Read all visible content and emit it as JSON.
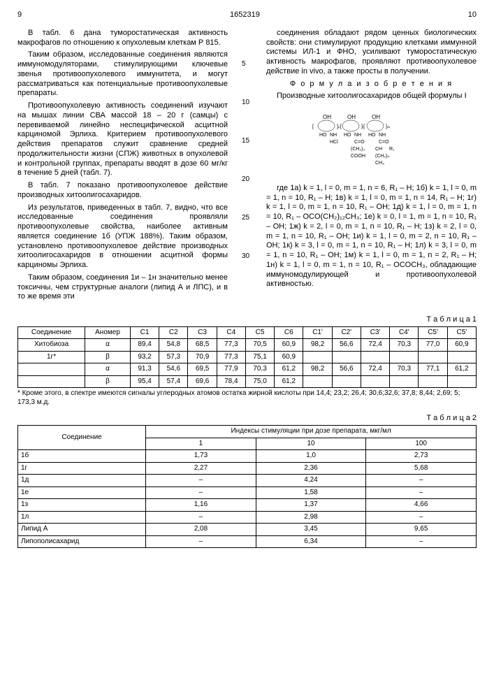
{
  "header": {
    "page_left": "9",
    "doc_number": "1652319",
    "page_right": "10"
  },
  "line_markers": [
    "5",
    "10",
    "15",
    "20",
    "25",
    "30"
  ],
  "left_column": {
    "p1": "В табл. 6 дана туморостатическая активность макрофагов по отношению к опухолевым клеткам Р 815.",
    "p2": "Таким образом, исследованные соединения являются иммуномодуляторами, стимулирующими ключевые звенья противоопухолевого иммунитета, и могут рассматриваться как потенциальные противоопухолевые препараты.",
    "p3": "Противоопухолевую активность соединений изучают на мышах линии СВА массой 18 – 20 г (самцы) с перевиваемой линейно неспецифической асцитной карциномой Эрлиха. Критерием противоопухолевого действия препаратов служит сравнение средней продолжительности жизни (СПЖ) животных в опухолевой и контрольной группах, препараты вводят в дозе 60 мг/кг в течение 5 дней (табл. 7).",
    "p4": "В табл. 7 показано противоопухолевое действие производных хитоолигосахаридов.",
    "p5": "Из результатов, приведенных в табл. 7, видно, что все исследованные соединения проявляли противоопухолевые свойства, наиболее активным является соединение 1б (УПЖ 188%). Таким образом, установлено противоопухолевое действие производных хитоолигосахаридов в отношении асцитной формы карциномы Эрлиха.",
    "p6": "Таким образом, соединения 1и – 1н значительно менее токсичны, чем структурные аналоги (липид А и ЛПС), и в то же время эти"
  },
  "right_column": {
    "p1": "соединения обладают рядом ценных биологических свойств: они стимулируют продукцию клетками иммунной системы ИЛ-1 и ФНО, усиливают туморостатическую активность макрофагов, проявляют противоопухолевое действие in vivo, а также просты в получении.",
    "formula_heading": "Ф о р м у л а  и з о б р е т е н и я",
    "p2": "Производные хитоолигосахаридов общей формулы I",
    "structure": "[химическая структура]",
    "p3": "где 1а) k = 1, l = 0, m = 1, n = 6, R₁ – H; 1б) k = 1, l = 0, m = 1, n = 10, R₁ – H; 1в) k = 1, l = 0, m = 1, n = 14, R₁ – H; 1г) k = 1, l = 0, m = 1, n = 10, R₁ – OH; 1д) k = 1, l = 0, m = 1, n = 10, R₁ – OCO(CH₂)₁₂CH₃; 1е) k = 0, l = 1, m = 1, n = 10, R₁ – OH; 1ж) k = 2, l = 0, m = 1, n = 10, R₁ – H; 1з) k = 2, l = 0, m = 1, n = 10, R₁ – OH; 1и) k = 1, l = 0, m = 2, n = 10, R₁ – OH; 1к) k = 3, l = 0, m = 1, n = 10, R₁ – H; 1л) k = 3, l = 0, m = 1, n = 10, R₁ – OH; 1м) k = 1, l = 0, m = 1, n = 2, R₁ – H; 1н) k = 1, l = 0, m = 1, n = 10, R₁ – OCOCH₃, обладающие иммуномодулирующей и противоопухолевой активностью."
  },
  "table1": {
    "label": "Т а б л и ц а  1",
    "headers": [
      "Соединение",
      "Аномер",
      "С1",
      "С2",
      "С3",
      "С4",
      "С5",
      "С6",
      "С1'",
      "С2'",
      "С3'",
      "С4'",
      "С5'",
      "C5'"
    ],
    "rows": [
      [
        "Хитобиоза",
        "α",
        "89,4",
        "54,8",
        "68,5",
        "77,3",
        "70,5",
        "60,9",
        "98,2",
        "56,6",
        "72,4",
        "70,3",
        "77,0",
        "60,9"
      ],
      [
        "1г*",
        "β",
        "93,2",
        "57,3",
        "70,9",
        "77,3",
        "75,1",
        "60,9",
        "",
        "",
        "",
        "",
        "",
        ""
      ],
      [
        "",
        "α",
        "91,3",
        "54,6",
        "69,5",
        "77,9",
        "70,3",
        "61,2",
        "98,2",
        "56,6",
        "72,4",
        "70,3",
        "77,1",
        "61,2"
      ],
      [
        "",
        "β",
        "95,4",
        "57,4",
        "69,6",
        "78,4",
        "75,0",
        "61,2",
        "",
        "",
        "",
        "",
        "",
        ""
      ]
    ],
    "footnote": "* Кроме этого, в спектре имеются сигналы углеродных атомов остатка жирной кислоты при 14,4; 23,2; 26,4; 30,6;32,6; 37,8; 8,44; 2,69; 5; 173,3 м.д."
  },
  "table2": {
    "label": "Т а б л и ц а  2",
    "header_main": "Соединение",
    "header_span": "Индексы стимуляции при дозе препарата, мкг/мл",
    "sub_headers": [
      "1",
      "10",
      "100"
    ],
    "rows": [
      [
        "1б",
        "1,73",
        "1,0",
        "2,73"
      ],
      [
        "1г",
        "2,27",
        "2,36",
        "5,68"
      ],
      [
        "1д",
        "–",
        "4,24",
        "–"
      ],
      [
        "1е",
        "–",
        "1,58",
        "–"
      ],
      [
        "1з",
        "1,16",
        "1,37",
        "4,66"
      ],
      [
        "1л",
        "–",
        "2,98",
        "–"
      ],
      [
        "Липид А",
        "2,08",
        "3,45",
        "9,65"
      ],
      [
        "Липополисахарид",
        "–",
        "6,34",
        "–"
      ]
    ]
  }
}
